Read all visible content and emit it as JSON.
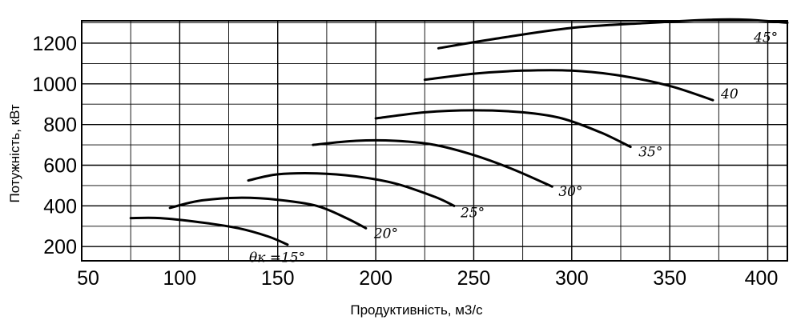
{
  "chart_data": {
    "type": "line",
    "title": "",
    "xlabel": "Продуктивність, м3/с",
    "ylabel": "Потужність, кВт",
    "xlim": [
      50,
      410
    ],
    "ylim": [
      130,
      1310
    ],
    "x_ticks": [
      "50",
      "100",
      "150",
      "200",
      "250",
      "300",
      "350",
      "400"
    ],
    "y_ticks": [
      "200",
      "400",
      "600",
      "800",
      "1000",
      "1200"
    ],
    "grid": true,
    "series": [
      {
        "name": "θк =15°",
        "x": [
          75,
          90,
          110,
          130,
          145,
          155
        ],
        "y": [
          340,
          340,
          320,
          290,
          250,
          210
        ]
      },
      {
        "name": "20°",
        "x": [
          95,
          110,
          130,
          150,
          170,
          185,
          195
        ],
        "y": [
          390,
          425,
          440,
          430,
          400,
          340,
          290
        ]
      },
      {
        "name": "25°",
        "x": [
          135,
          150,
          170,
          190,
          210,
          230,
          240
        ],
        "y": [
          525,
          555,
          560,
          545,
          510,
          445,
          400
        ]
      },
      {
        "name": "30°",
        "x": [
          168,
          190,
          210,
          230,
          250,
          270,
          290
        ],
        "y": [
          700,
          720,
          720,
          700,
          650,
          580,
          495
        ]
      },
      {
        "name": "35°",
        "x": [
          200,
          225,
          250,
          275,
          295,
          315,
          330
        ],
        "y": [
          830,
          860,
          870,
          860,
          830,
          760,
          690
        ]
      },
      {
        "name": "40",
        "x": [
          225,
          250,
          275,
          300,
          325,
          350,
          372
        ],
        "y": [
          1020,
          1050,
          1065,
          1065,
          1040,
          990,
          920
        ]
      },
      {
        "name": "45°",
        "x": [
          232,
          260,
          300,
          340,
          370,
          390,
          410
        ],
        "y": [
          1175,
          1220,
          1275,
          1300,
          1315,
          1315,
          1300
        ]
      }
    ]
  }
}
